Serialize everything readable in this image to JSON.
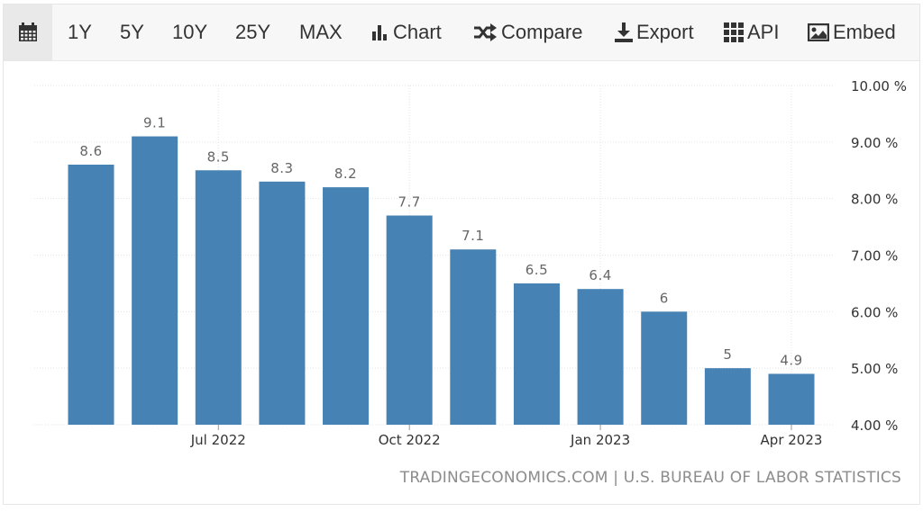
{
  "toolbar": {
    "ranges": [
      "1Y",
      "5Y",
      "10Y",
      "25Y",
      "MAX"
    ],
    "chart_label": "Chart",
    "compare_label": "Compare",
    "export_label": "Export",
    "api_label": "API",
    "embed_label": "Embed"
  },
  "source": "TRADINGECONOMICS.COM | U.S. BUREAU OF LABOR STATISTICS",
  "colors": {
    "bar": "#4682b4",
    "label": "#666666",
    "grid": "#e3e3e3"
  },
  "chart_data": {
    "type": "bar",
    "title": "",
    "xlabel": "",
    "ylabel": "",
    "categories": [
      "2022-05",
      "2022-06",
      "2022-07",
      "2022-08",
      "2022-09",
      "2022-10",
      "2022-11",
      "2022-12",
      "2023-01",
      "2023-02",
      "2023-03",
      "2023-04"
    ],
    "values": [
      8.6,
      9.1,
      8.5,
      8.3,
      8.2,
      7.7,
      7.1,
      6.5,
      6.4,
      6.0,
      5.0,
      4.9
    ],
    "data_labels": [
      "8.6",
      "9.1",
      "8.5",
      "8.3",
      "8.2",
      "7.7",
      "7.1",
      "6.5",
      "6.4",
      "6",
      "5",
      "4.9"
    ],
    "ylim": [
      4,
      10
    ],
    "y_ticks": [
      "10.00 %",
      "9.00 %",
      "8.00 %",
      "7.00 %",
      "6.00 %",
      "5.00 %",
      "4.00 %"
    ],
    "x_ticks": [
      "Jul 2022",
      "Oct 2022",
      "Jan 2023",
      "Apr 2023"
    ],
    "x_tick_categories": [
      "2022-07",
      "2022-10",
      "2023-01",
      "2023-04"
    ],
    "y_axis_position": "right",
    "grid": true
  }
}
